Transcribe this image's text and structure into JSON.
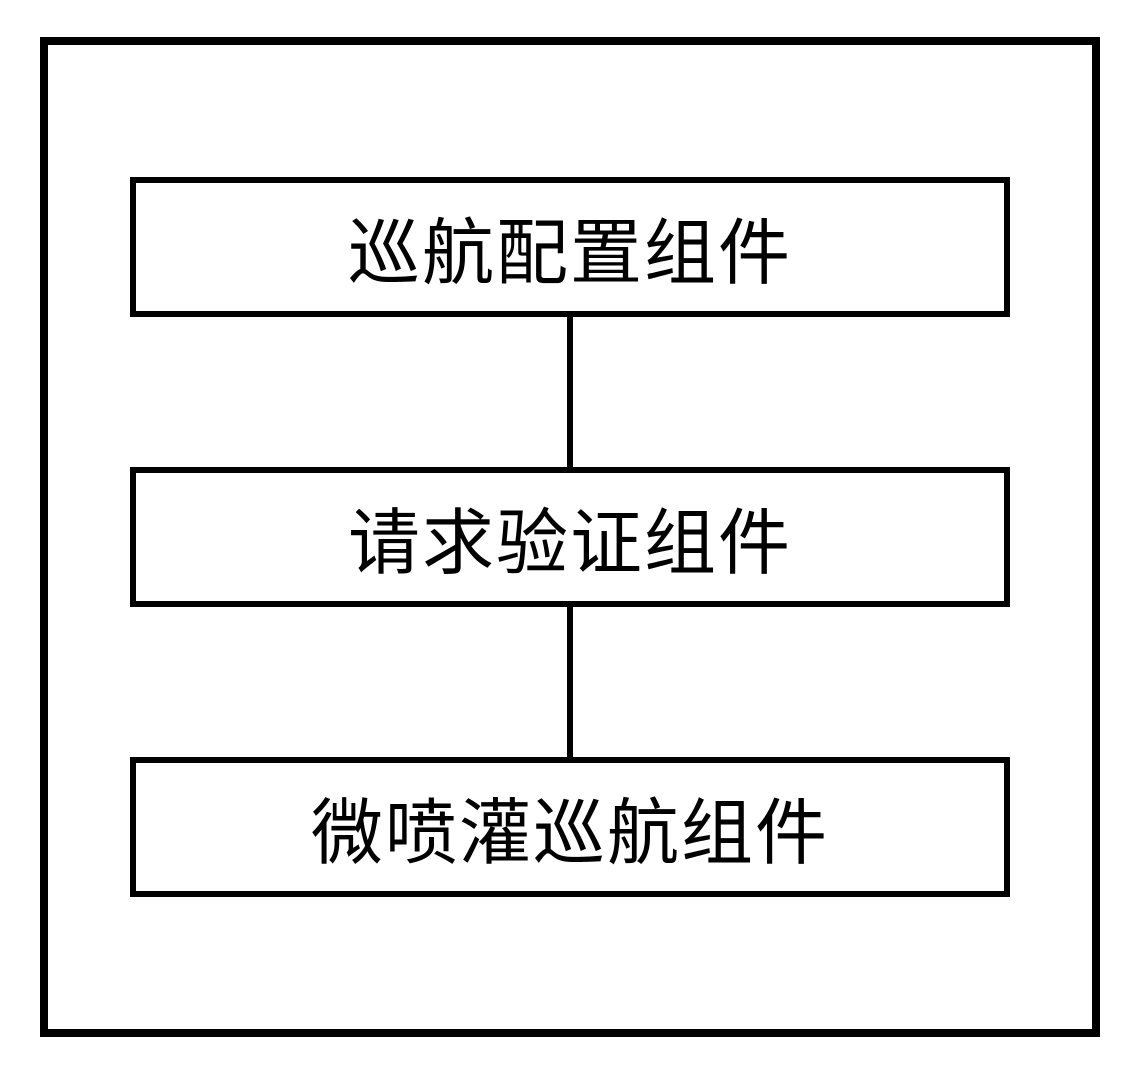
{
  "diagram": {
    "type": "flowchart",
    "direction": "vertical",
    "background_color": "#ffffff",
    "outer_border_color": "#000000",
    "outer_border_width": 8,
    "node_border_color": "#000000",
    "node_border_width": 6,
    "node_background_color": "#ffffff",
    "connector_color": "#000000",
    "connector_width": 6,
    "font_family": "KaiTi",
    "font_size": 72,
    "text_color": "#000000",
    "nodes": [
      {
        "id": "node1",
        "label": "巡航配置组件"
      },
      {
        "id": "node2",
        "label": "请求验证组件"
      },
      {
        "id": "node3",
        "label": "微喷灌巡航组件"
      }
    ],
    "edges": [
      {
        "from": "node1",
        "to": "node2"
      },
      {
        "from": "node2",
        "to": "node3"
      }
    ]
  }
}
